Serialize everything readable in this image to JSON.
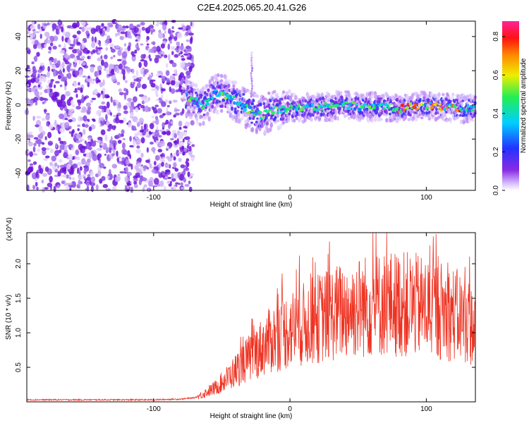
{
  "title": "C2E4.2025.065.20.41.G26",
  "chart_data": [
    {
      "type": "heatmap",
      "xlabel": "Height of straight line (km)",
      "ylabel": "Frequency (Hz)",
      "xlim": [
        -193,
        136
      ],
      "ylim": [
        -50,
        49
      ],
      "xticks": [
        -100,
        0,
        100
      ],
      "yticks": [
        -40,
        -20,
        0,
        20,
        40
      ],
      "colorbar": {
        "label": "Normalized spectral amplitude",
        "range": [
          0,
          0.88
        ],
        "ticks": [
          "0.0",
          "0.2",
          "0.4",
          "0.6",
          "0.8"
        ],
        "colormap": "rainbow (violet low to red/magenta high)"
      },
      "noise_region_x": [
        -193,
        -75
      ],
      "signal_track": {
        "x": [
          -76,
          -70,
          -65,
          -60,
          -55,
          -50,
          -45,
          -40,
          -35,
          -30,
          -25,
          -20,
          -15,
          -10,
          -5,
          0,
          10,
          20,
          30,
          40,
          50,
          60,
          70,
          80,
          90,
          100,
          110,
          120,
          130,
          136
        ],
        "y": [
          5,
          2,
          -1,
          2,
          7,
          6,
          5,
          2,
          0,
          -3,
          -5,
          -6,
          -4,
          -3,
          -2,
          -2,
          -2,
          -1,
          -1,
          0,
          -1,
          -1,
          -1,
          -2,
          -1,
          0,
          -1,
          -2,
          -2,
          -3
        ]
      }
    },
    {
      "type": "line",
      "xlabel": "Height of straight line (km)",
      "ylabel": "SNR (10 * v/v)",
      "y_multiplier": "(x10^4)",
      "xlim": [
        -193,
        136
      ],
      "ylim": [
        0,
        2.45
      ],
      "xticks": [
        -100,
        0,
        100
      ],
      "yticks": [
        0.5,
        1.0,
        1.5,
        2.0
      ],
      "series": [
        {
          "color": "#ee3322",
          "x": [
            -193,
            -150,
            -100,
            -80,
            -70,
            -65,
            -60,
            -55,
            -50,
            -45,
            -40,
            -35,
            -30,
            -25,
            -20,
            -15,
            -10,
            -5,
            0,
            10,
            20,
            30,
            40,
            50,
            60,
            70,
            80,
            90,
            100,
            110,
            120,
            130,
            136
          ],
          "y": [
            0.03,
            0.03,
            0.03,
            0.04,
            0.06,
            0.1,
            0.15,
            0.2,
            0.28,
            0.36,
            0.45,
            0.55,
            0.63,
            0.72,
            0.8,
            0.88,
            0.95,
            1.0,
            1.05,
            1.12,
            1.2,
            1.27,
            1.32,
            1.37,
            1.4,
            1.42,
            1.42,
            1.4,
            1.37,
            1.33,
            1.27,
            1.18,
            1.05
          ]
        }
      ]
    }
  ]
}
